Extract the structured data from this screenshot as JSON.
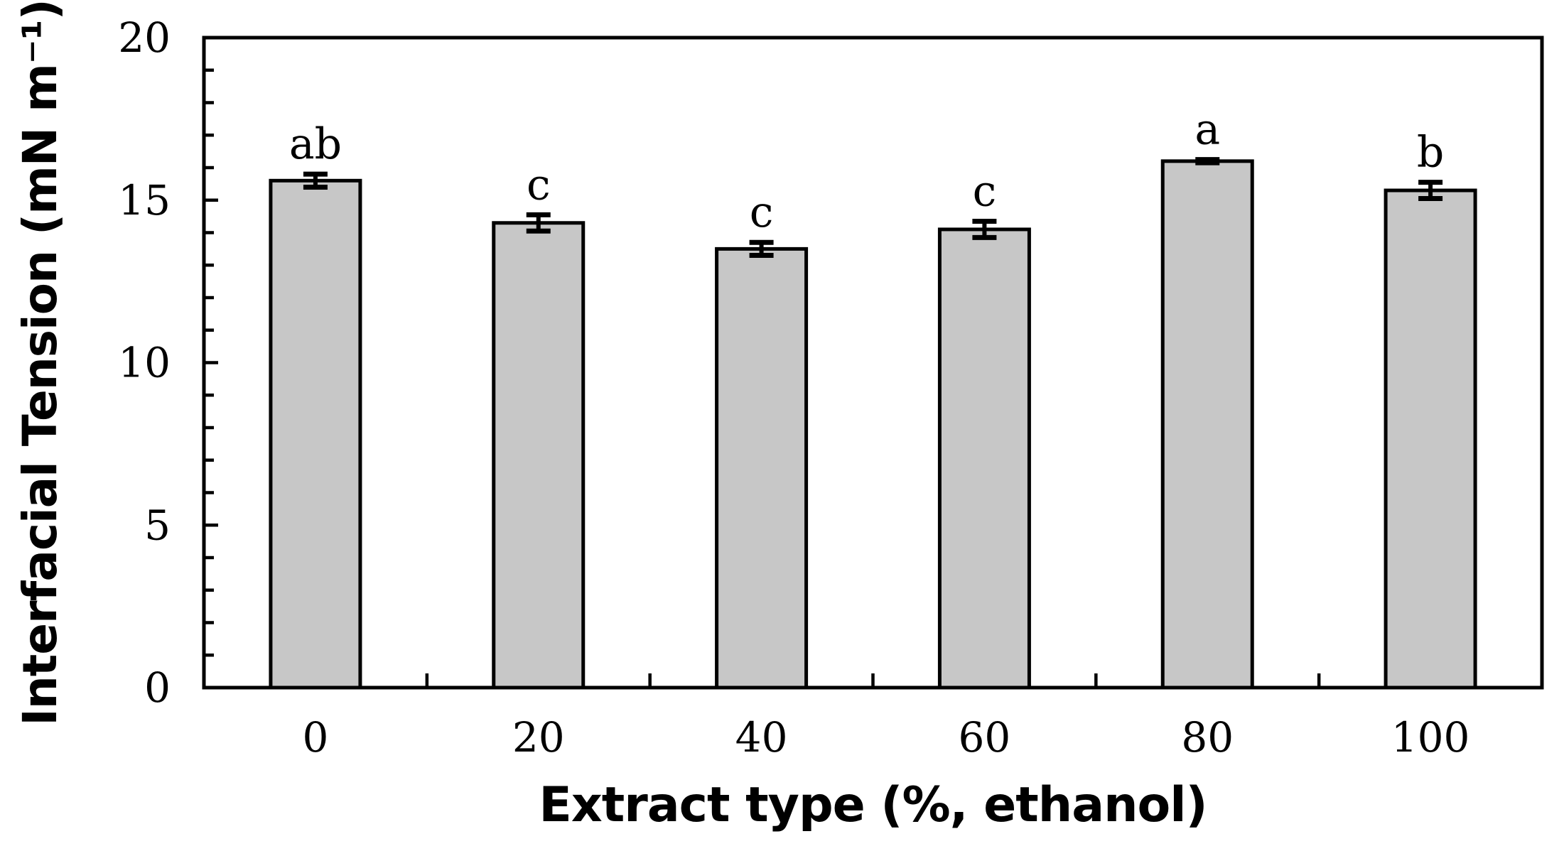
{
  "figure": {
    "background_color": "#ffffff"
  },
  "chart_data": {
    "type": "bar",
    "title": "",
    "categories": [
      "0",
      "20",
      "40",
      "60",
      "80",
      "100"
    ],
    "values": [
      15.6,
      14.3,
      13.5,
      14.1,
      16.2,
      15.3
    ],
    "errors": [
      0.2,
      0.25,
      0.2,
      0.25,
      0.05,
      0.25
    ],
    "significance_letters": [
      "ab",
      "c",
      "c",
      "c",
      "a",
      "b"
    ],
    "xlabel": "Extract type (%, ethanol)",
    "ylabel": "Interfacial Tension (mN m⁻¹)",
    "ylim": [
      0,
      20
    ],
    "y_major_ticks": [
      0,
      5,
      10,
      15,
      20
    ],
    "y_minor_tick_step": 1,
    "x_tick_labels": [
      "0",
      "20",
      "40",
      "60",
      "80",
      "100"
    ],
    "grid": false,
    "legend_position": "none",
    "bar_fill_color": "#c7c7c7",
    "bar_edge_color": "#000000",
    "axis_color": "#000000",
    "text_color": "#000000"
  }
}
